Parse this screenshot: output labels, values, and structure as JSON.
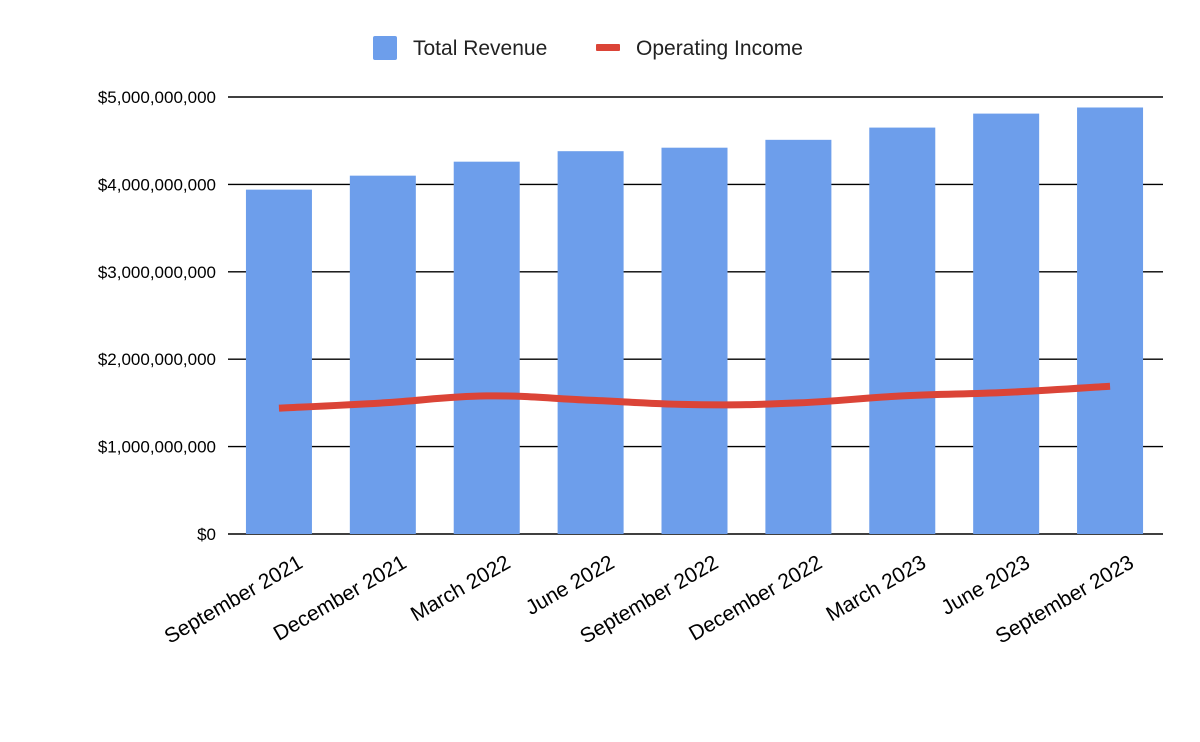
{
  "colors": {
    "revenue": "#6d9eeb",
    "operating_income": "#db4437",
    "grid": "#000000",
    "text": "#000000"
  },
  "chart_data": {
    "type": "bar",
    "categories": [
      "September 2021",
      "December 2021",
      "March 2022",
      "June 2022",
      "September 2022",
      "December 2022",
      "March 2023",
      "June 2023",
      "September 2023"
    ],
    "series": [
      {
        "name": "Total Revenue",
        "type": "bar",
        "values": [
          3940000000,
          4100000000,
          4260000000,
          4380000000,
          4420000000,
          4510000000,
          4650000000,
          4810000000,
          4880000000
        ]
      },
      {
        "name": "Operating Income",
        "type": "line",
        "values": [
          1440000000,
          1500000000,
          1580000000,
          1530000000,
          1480000000,
          1500000000,
          1580000000,
          1620000000,
          1690000000
        ]
      }
    ],
    "y_ticks": [
      0,
      1000000000,
      2000000000,
      3000000000,
      4000000000,
      5000000000
    ],
    "y_tick_labels": [
      "$0",
      "$1,000,000,000",
      "$2,000,000,000",
      "$3,000,000,000",
      "$4,000,000,000",
      "$5,000,000,000"
    ],
    "ylim": [
      0,
      5000000000
    ],
    "grid": true,
    "legend_position": "top-center"
  }
}
